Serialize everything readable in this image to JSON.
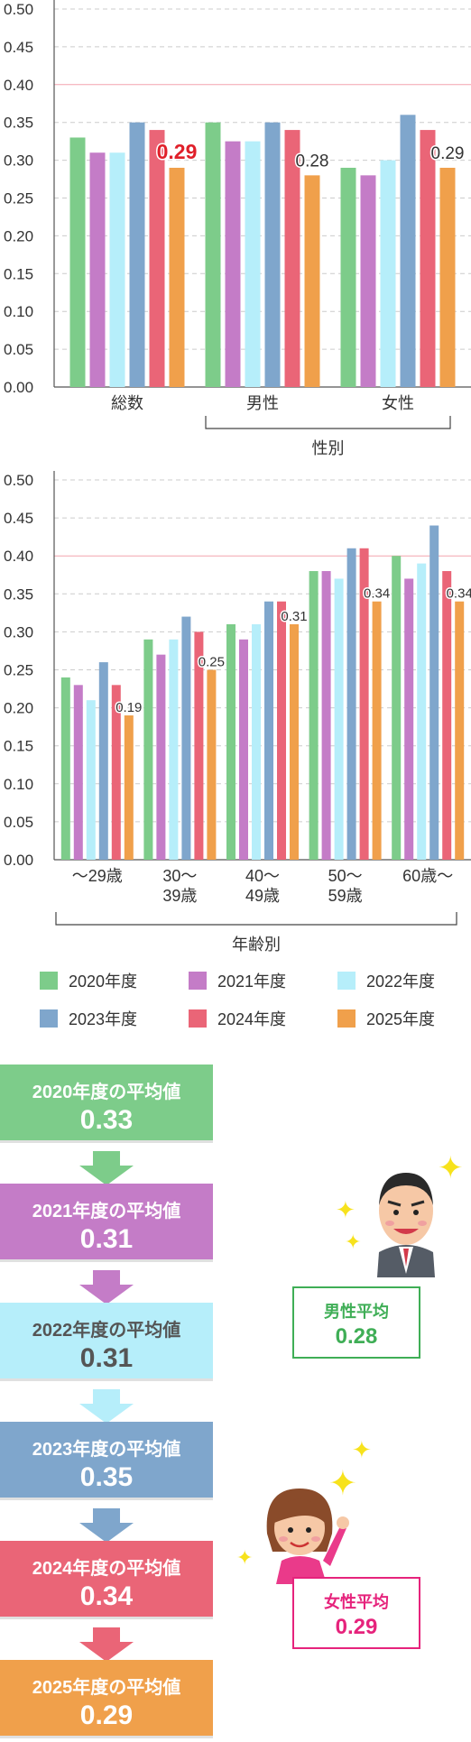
{
  "colors": {
    "2020": "#7dcc8a",
    "2021": "#c47cc7",
    "2022": "#b6eefa",
    "2023": "#7fa6cc",
    "2024": "#ea6577",
    "2025": "#f0a04b",
    "highlight_label": "#e0202a",
    "male_green": "#3fae56",
    "female_pink": "#e6237c"
  },
  "chart_data": [
    {
      "type": "bar",
      "categories": [
        "総数",
        "男性",
        "女性"
      ],
      "group_label": "性別",
      "series": [
        {
          "name": "2020年度",
          "values": [
            0.33,
            0.35,
            0.29
          ]
        },
        {
          "name": "2021年度",
          "values": [
            0.31,
            0.325,
            0.28
          ]
        },
        {
          "name": "2022年度",
          "values": [
            0.31,
            0.325,
            0.3
          ]
        },
        {
          "name": "2023年度",
          "values": [
            0.35,
            0.35,
            0.36
          ]
        },
        {
          "name": "2024年度",
          "values": [
            0.34,
            0.34,
            0.34
          ]
        },
        {
          "name": "2025年度",
          "values": [
            0.29,
            0.28,
            0.29
          ]
        }
      ],
      "data_labels": [
        "0.29",
        "0.28",
        "0.29"
      ],
      "y_ticks": [
        "0.00",
        "0.05",
        "0.10",
        "0.15",
        "0.20",
        "0.25",
        "0.30",
        "0.35",
        "0.40",
        "0.45",
        "0.50"
      ],
      "ylim": [
        0,
        0.5
      ],
      "reference_line": 0.4,
      "grid": true
    },
    {
      "type": "bar",
      "categories": [
        "～29歳",
        "30～\n39歳",
        "40～\n49歳",
        "50～\n59歳",
        "60歳～"
      ],
      "group_label": "年齢別",
      "series": [
        {
          "name": "2020年度",
          "values": [
            0.24,
            0.29,
            0.31,
            0.38,
            0.4
          ]
        },
        {
          "name": "2021年度",
          "values": [
            0.23,
            0.27,
            0.29,
            0.38,
            0.37
          ]
        },
        {
          "name": "2022年度",
          "values": [
            0.21,
            0.29,
            0.31,
            0.37,
            0.39
          ]
        },
        {
          "name": "2023年度",
          "values": [
            0.26,
            0.32,
            0.34,
            0.41,
            0.44
          ]
        },
        {
          "name": "2024年度",
          "values": [
            0.23,
            0.3,
            0.34,
            0.41,
            0.38
          ]
        },
        {
          "name": "2025年度",
          "values": [
            0.19,
            0.25,
            0.31,
            0.34,
            0.34
          ]
        }
      ],
      "data_labels": [
        "0.19",
        "0.25",
        "0.31",
        "0.34",
        "0.34"
      ],
      "y_ticks": [
        "0.00",
        "0.05",
        "0.10",
        "0.15",
        "0.20",
        "0.25",
        "0.30",
        "0.35",
        "0.40",
        "0.45",
        "0.50"
      ],
      "ylim": [
        0,
        0.5
      ],
      "reference_line": 0.4,
      "grid": true
    }
  ],
  "legend": [
    {
      "label": "2020年度",
      "color": "#7dcc8a"
    },
    {
      "label": "2021年度",
      "color": "#c47cc7"
    },
    {
      "label": "2022年度",
      "color": "#b6eefa"
    },
    {
      "label": "2023年度",
      "color": "#7fa6cc"
    },
    {
      "label": "2024年度",
      "color": "#ea6577"
    },
    {
      "label": "2025年度",
      "color": "#f0a04b"
    }
  ],
  "averages": [
    {
      "title": "2020年度の平均値",
      "value": "0.33",
      "color": "#7dcc8a",
      "text": "#ffffff"
    },
    {
      "title": "2021年度の平均値",
      "value": "0.31",
      "color": "#c47cc7",
      "text": "#ffffff"
    },
    {
      "title": "2022年度の平均値",
      "value": "0.31",
      "color": "#b6eefa",
      "text": "#555555"
    },
    {
      "title": "2023年度の平均値",
      "value": "0.35",
      "color": "#7fa6cc",
      "text": "#ffffff"
    },
    {
      "title": "2024年度の平均値",
      "value": "0.34",
      "color": "#ea6577",
      "text": "#ffffff"
    },
    {
      "title": "2025年度の平均値",
      "value": "0.29",
      "color": "#f0a04b",
      "text": "#ffffff"
    }
  ],
  "male_avg": {
    "label": "男性平均",
    "value": "0.28"
  },
  "female_avg": {
    "label": "女性平均",
    "value": "0.29"
  },
  "icons": [
    "sparkle-icon",
    "man-avatar-icon",
    "woman-avatar-icon",
    "down-arrow-icon"
  ]
}
